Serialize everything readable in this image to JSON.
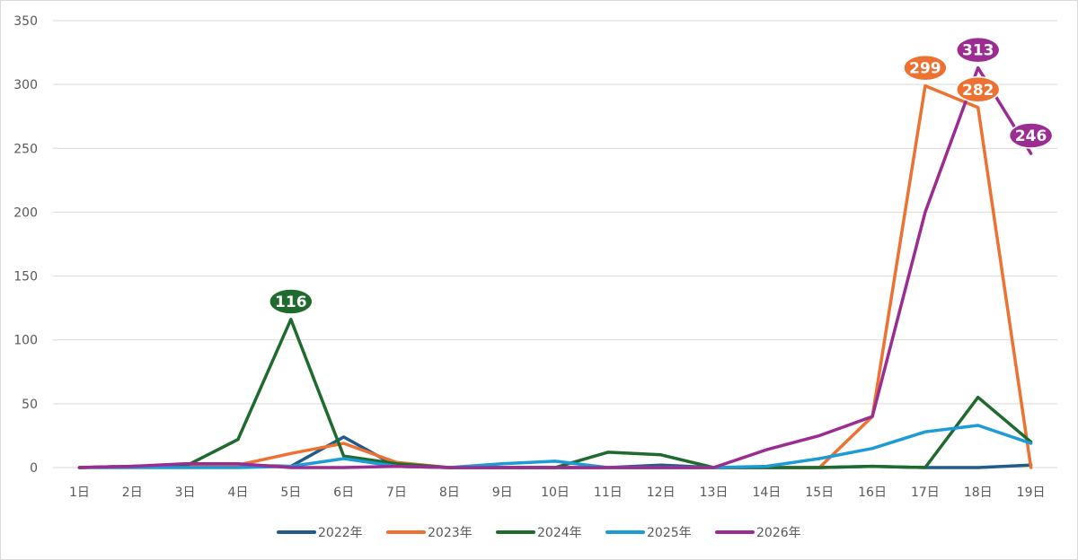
{
  "chart_data": {
    "type": "line",
    "title": "",
    "xlabel": "",
    "ylabel": "",
    "ylim": [
      0,
      350
    ],
    "yticks": [
      0,
      50,
      100,
      150,
      200,
      250,
      300,
      350
    ],
    "grid": "horizontal",
    "legend_position": "bottom",
    "categories": [
      "1日",
      "2日",
      "3日",
      "4日",
      "5日",
      "6日",
      "7日",
      "8日",
      "9日",
      "10日",
      "11日",
      "12日",
      "13日",
      "14日",
      "15日",
      "16日",
      "17日",
      "18日",
      "19日"
    ],
    "series": [
      {
        "name": "2022年",
        "color": "#1f5c8b",
        "values": [
          0,
          1,
          1,
          2,
          1,
          24,
          1,
          0,
          0,
          0,
          0,
          2,
          0,
          0,
          0,
          1,
          0,
          0,
          2
        ]
      },
      {
        "name": "2023年",
        "color": "#ed7232",
        "values": [
          0,
          1,
          2,
          2,
          11,
          19,
          4,
          0,
          0,
          0,
          0,
          0,
          0,
          0,
          0,
          40,
          299,
          282,
          0
        ],
        "labels": [
          {
            "index": 16,
            "text": "299"
          },
          {
            "index": 17,
            "text": "282"
          }
        ]
      },
      {
        "name": "2024年",
        "color": "#1e6b2d",
        "values": [
          0,
          1,
          1,
          22,
          116,
          9,
          3,
          0,
          0,
          0,
          12,
          10,
          0,
          0,
          0,
          1,
          0,
          55,
          20
        ],
        "labels": [
          {
            "index": 4,
            "text": "116"
          }
        ]
      },
      {
        "name": "2025年",
        "color": "#1d9bd6",
        "values": [
          0,
          0,
          0,
          0,
          1,
          7,
          1,
          0,
          3,
          5,
          0,
          0,
          0,
          1,
          7,
          15,
          28,
          33,
          19
        ]
      },
      {
        "name": "2026年",
        "color": "#9b2c92",
        "values": [
          0,
          1,
          3,
          3,
          0,
          0,
          1,
          0,
          0,
          0,
          0,
          0,
          0,
          14,
          25,
          40,
          200,
          313,
          246
        ],
        "labels": [
          {
            "index": 17,
            "text": "313"
          },
          {
            "index": 18,
            "text": "246"
          }
        ]
      }
    ]
  }
}
